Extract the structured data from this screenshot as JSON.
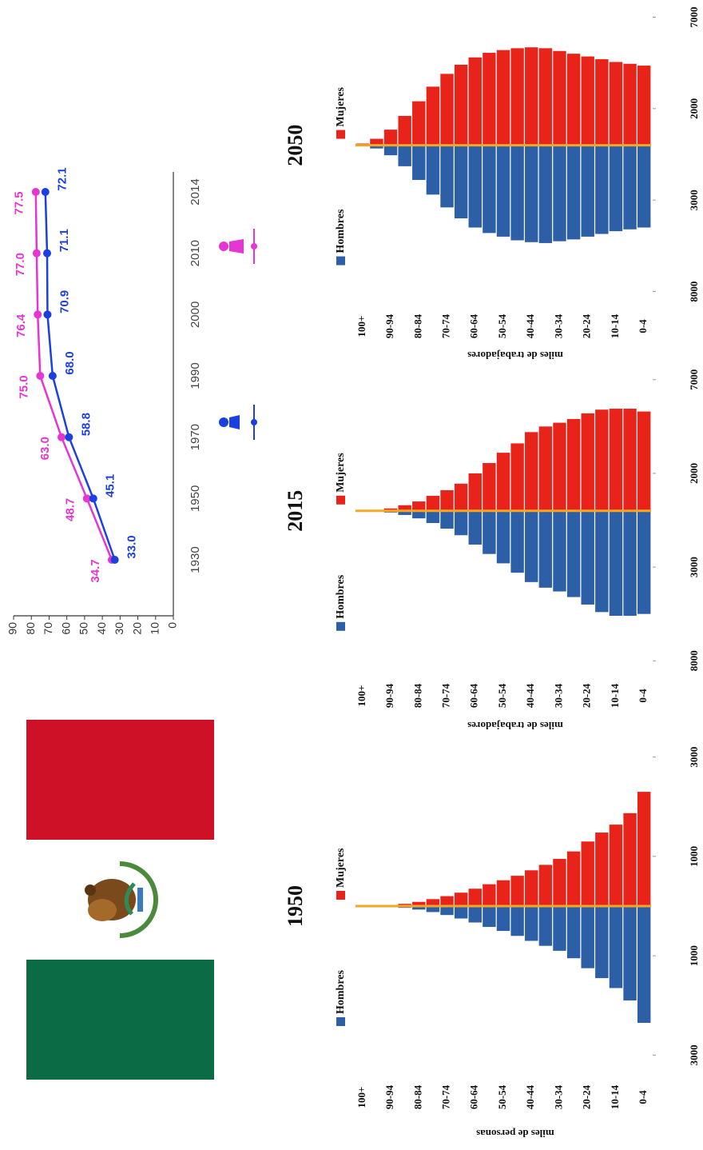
{
  "chart_data": [
    {
      "type": "line",
      "categories": [
        "1930",
        "1950",
        "1970",
        "1990",
        "2000",
        "2010",
        "2014"
      ],
      "series": [
        {
          "color": "#e535d2",
          "values": [
            34.7,
            48.7,
            63,
            75,
            76.4,
            77,
            77.5
          ],
          "value_labels": [
            "34.7",
            "48.7",
            "63.0",
            "75.0",
            "76.4",
            "77.0",
            "77.5"
          ]
        },
        {
          "color": "#1c3fe0",
          "values": [
            33,
            45.1,
            58.8,
            68,
            70.9,
            71.1,
            72.1
          ],
          "value_labels": [
            "33.0",
            "45.1",
            "58.8",
            "68.0",
            "70.9",
            "71.1",
            "72.1"
          ]
        }
      ],
      "ylim": [
        0,
        90
      ],
      "yticks": [
        0,
        10,
        20,
        30,
        40,
        50,
        60,
        70,
        80,
        90
      ]
    },
    {
      "type": "pyramid",
      "title": "1950",
      "ylabel": "miles de personas",
      "categories": [
        "0-4",
        null,
        "10-14",
        null,
        "20-24",
        null,
        "30-34",
        null,
        "40-44",
        null,
        "50-54",
        null,
        "60-64",
        null,
        "70-74",
        null,
        "80-84",
        null,
        "90-94",
        null,
        "100+"
      ],
      "series": [
        {
          "name": "Hombres",
          "color": "#2d5fa7",
          "values": [
            2350,
            1900,
            1650,
            1450,
            1250,
            1050,
            900,
            800,
            700,
            600,
            500,
            420,
            330,
            250,
            180,
            120,
            70,
            35,
            15,
            5,
            1
          ]
        },
        {
          "name": "Mujeres",
          "color": "#e8231a",
          "values": [
            2300,
            1870,
            1640,
            1480,
            1300,
            1100,
            950,
            830,
            720,
            610,
            520,
            440,
            350,
            270,
            200,
            140,
            85,
            45,
            20,
            7,
            2
          ]
        }
      ],
      "xlim": [
        -3300,
        3300
      ],
      "xticks": [
        {
          "value": -3000,
          "label": "3000"
        },
        {
          "value": -1000,
          "label": "1000"
        },
        1000,
        3000
      ]
    },
    {
      "type": "pyramid",
      "title": "2015",
      "ylabel": "miles de trabajadores",
      "categories": [
        "0-4",
        null,
        "10-14",
        null,
        "20-24",
        null,
        "30-34",
        null,
        "40-44",
        null,
        "50-54",
        null,
        "60-64",
        null,
        "70-74",
        null,
        "80-84",
        null,
        "90-94",
        null,
        "100+"
      ],
      "series": [
        {
          "name": "Hombres",
          "color": "#2d5fa7",
          "values": [
            5500,
            5600,
            5600,
            5400,
            5000,
            4600,
            4300,
            4100,
            3800,
            3300,
            2800,
            2300,
            1800,
            1300,
            950,
            650,
            400,
            220,
            90,
            30,
            8
          ]
        },
        {
          "name": "Mujeres",
          "color": "#e8231a",
          "values": [
            5300,
            5450,
            5450,
            5400,
            5200,
            4900,
            4700,
            4500,
            4200,
            3600,
            3100,
            2550,
            2000,
            1450,
            1100,
            800,
            500,
            300,
            130,
            45,
            12
          ]
        }
      ],
      "xlim": [
        -8500,
        7500
      ],
      "xticks": [
        {
          "value": -8000,
          "label": "8000"
        },
        {
          "value": -3000,
          "label": "3000"
        },
        2000,
        7000
      ]
    },
    {
      "type": "pyramid",
      "title": "2050",
      "ylabel": "miles de trabajadores",
      "categories": [
        "0-4",
        null,
        "10-14",
        null,
        "20-24",
        null,
        "30-34",
        null,
        "40-44",
        null,
        "50-54",
        null,
        "60-64",
        null,
        "70-74",
        null,
        "80-84",
        null,
        "90-94",
        null,
        "100+"
      ],
      "series": [
        {
          "name": "Hombres",
          "color": "#2d5fa7",
          "values": [
            4500,
            4600,
            4700,
            4850,
            5000,
            5150,
            5250,
            5350,
            5300,
            5200,
            5000,
            4800,
            4500,
            4000,
            3400,
            2700,
            1900,
            1150,
            550,
            180,
            40
          ]
        },
        {
          "name": "Mujeres",
          "color": "#e8231a",
          "values": [
            4350,
            4450,
            4550,
            4700,
            4850,
            5000,
            5150,
            5300,
            5350,
            5300,
            5200,
            5050,
            4800,
            4400,
            3900,
            3200,
            2400,
            1600,
            850,
            350,
            90
          ]
        }
      ],
      "xlim": [
        -8500,
        7500
      ],
      "xticks": [
        {
          "value": -8000,
          "label": "8000"
        },
        {
          "value": -3000,
          "label": "3000"
        },
        2000,
        7000
      ]
    }
  ]
}
